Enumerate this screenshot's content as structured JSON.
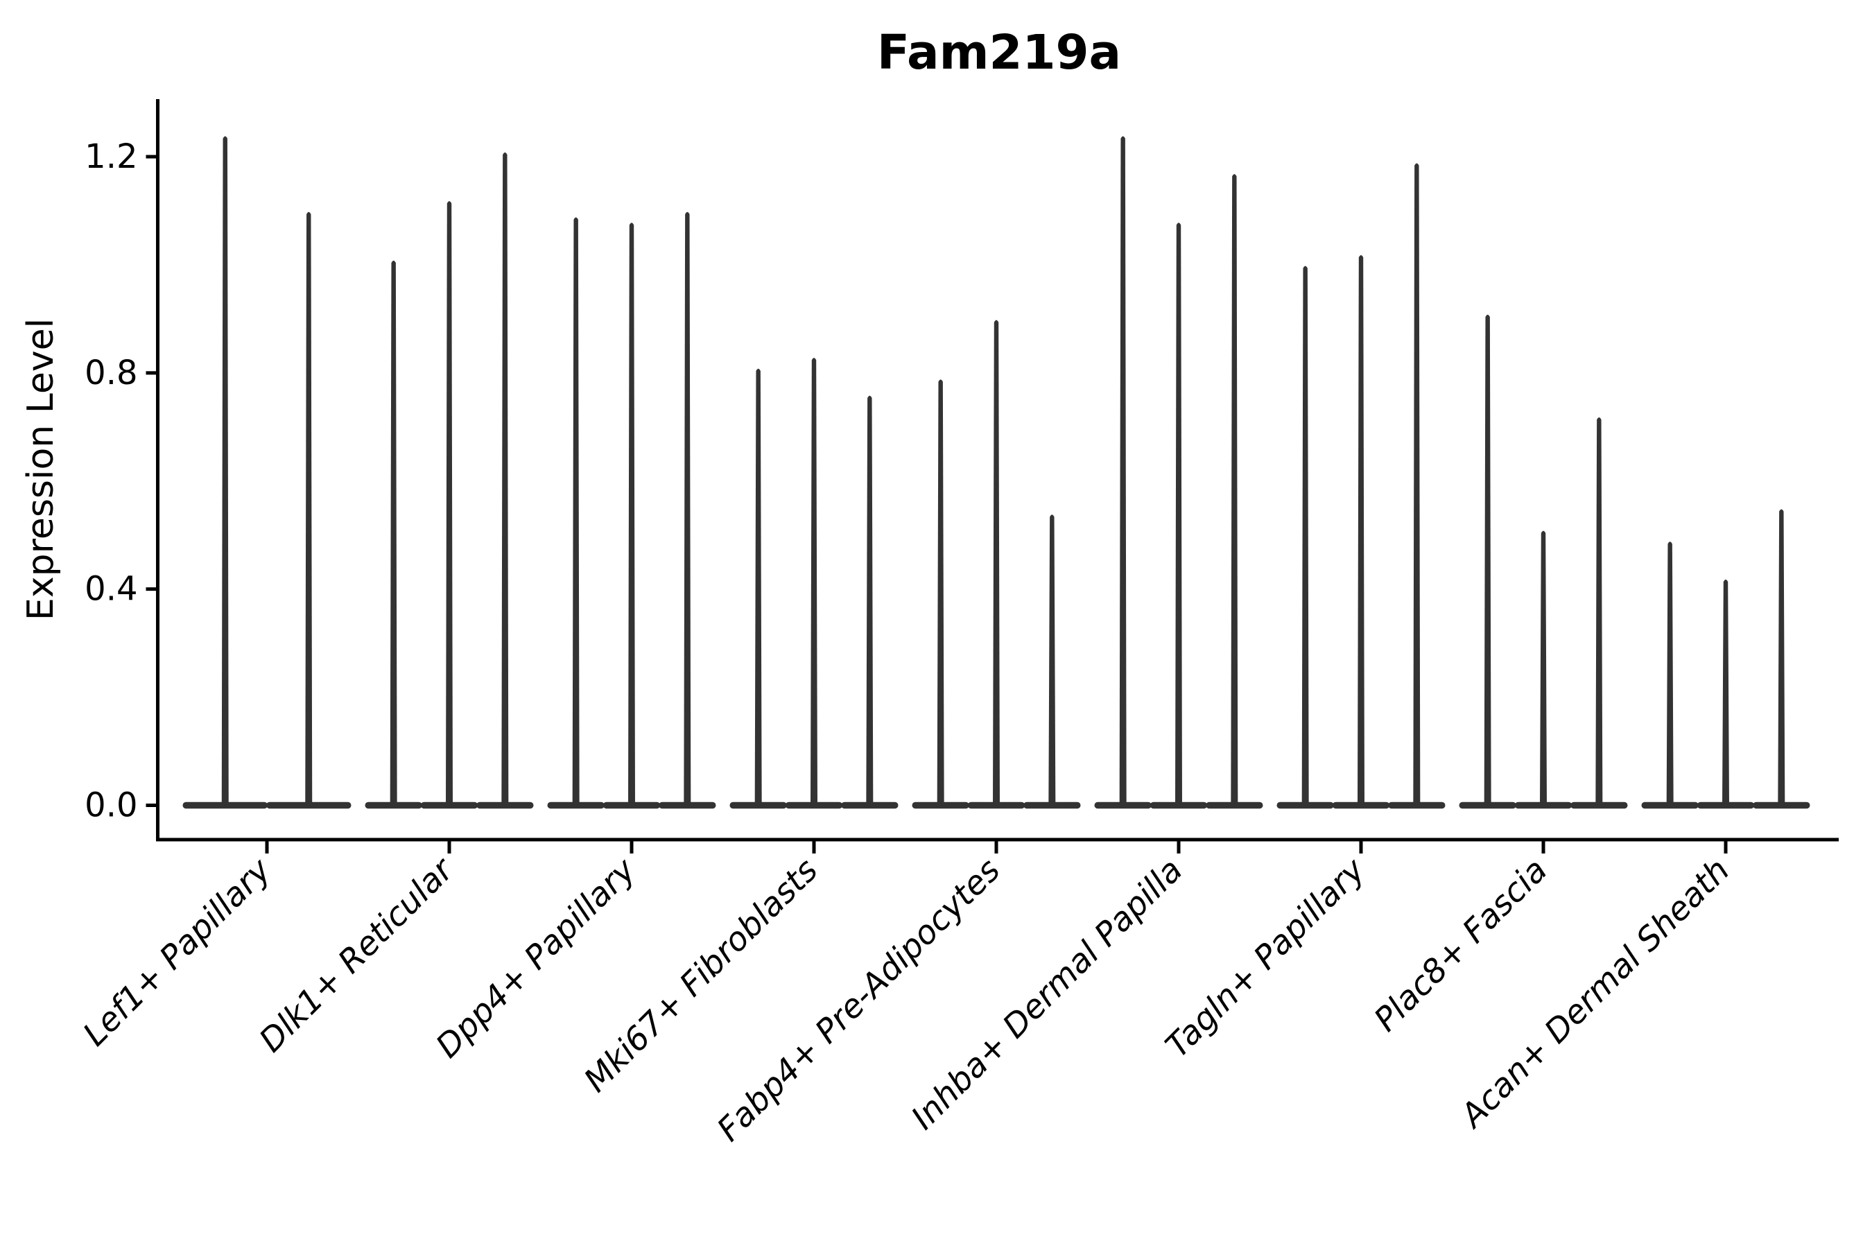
{
  "chart_data": {
    "type": "violin",
    "title": "Fam219a",
    "ylabel": "Expression Level",
    "xlabel": "",
    "ytick_labels": [
      "0.0",
      "0.4",
      "0.8",
      "1.2"
    ],
    "ytick_values": [
      0.0,
      0.4,
      0.8,
      1.2
    ],
    "ylim": [
      -0.06,
      1.31
    ],
    "grid": false,
    "legend_position": "none",
    "violin_color": "#333333",
    "axis_color": "#000000",
    "background_color": "#ffffff",
    "description": "Needle-shaped violins: wide flat density at expression 0 with a thin spike up to each violin's maximum expression value.",
    "groups": [
      {
        "category": "Lef1+ Papillary",
        "violin_peaks": [
          1.24,
          1.1
        ]
      },
      {
        "category": "Dlk1+ Reticular",
        "violin_peaks": [
          1.01,
          1.12,
          1.21
        ]
      },
      {
        "category": "Dpp4+ Papillary",
        "violin_peaks": [
          1.09,
          1.08,
          1.1
        ]
      },
      {
        "category": "Mki67+ Fibroblasts",
        "violin_peaks": [
          0.81,
          0.83,
          0.76
        ]
      },
      {
        "category": "Fabp4+ Pre-Adipocytes",
        "violin_peaks": [
          0.79,
          0.9,
          0.54
        ]
      },
      {
        "category": "Inhba+ Dermal Papilla",
        "violin_peaks": [
          1.24,
          1.08,
          1.17
        ]
      },
      {
        "category": "Tagln+ Papillary",
        "violin_peaks": [
          1.0,
          1.02,
          1.19
        ]
      },
      {
        "category": "Plac8+ Fascia",
        "violin_peaks": [
          0.91,
          0.51,
          0.72
        ]
      },
      {
        "category": "Acan+ Dermal Sheath",
        "violin_peaks": [
          0.49,
          0.42,
          0.55
        ]
      }
    ]
  }
}
